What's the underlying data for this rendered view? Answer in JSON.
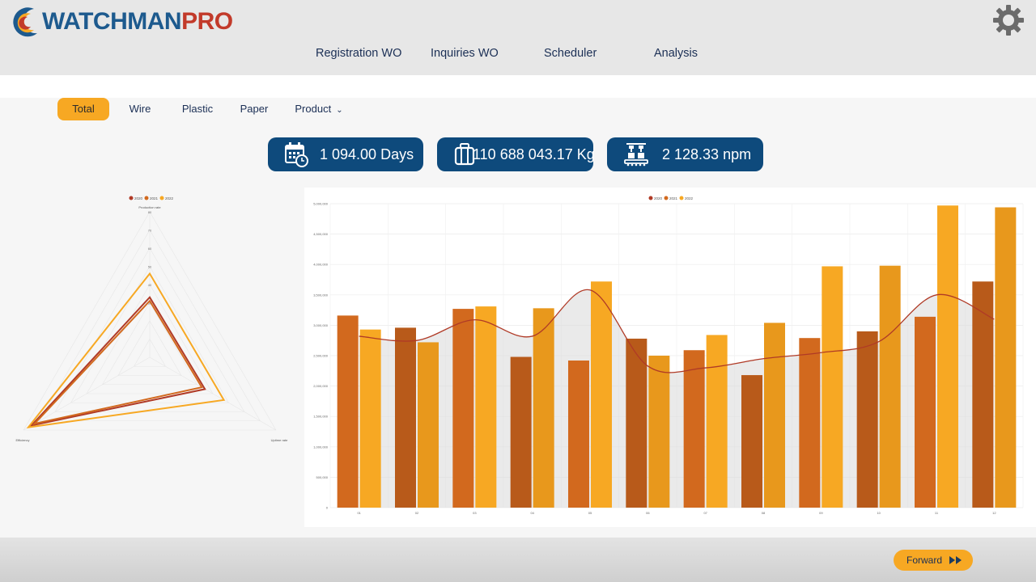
{
  "header": {
    "logo": {
      "part1": "WATCHMAN",
      "part2": "PRO"
    },
    "settings_icon": "gear-icon"
  },
  "nav": {
    "items": [
      {
        "label": "Registration WO"
      },
      {
        "label": "Inquiries WO"
      },
      {
        "label": "Scheduler"
      },
      {
        "label": "Analysis"
      }
    ]
  },
  "filters": {
    "items": [
      {
        "label": "Total",
        "active": true
      },
      {
        "label": "Wire",
        "active": false
      },
      {
        "label": "Plastic",
        "active": false
      },
      {
        "label": "Paper",
        "active": false
      }
    ],
    "product": {
      "label": "Product",
      "icon": "chevron-down-icon"
    }
  },
  "kpis": [
    {
      "icon": "calendar-clock-icon",
      "value": "1 094.00 Days"
    },
    {
      "icon": "luggage-icon",
      "value": "110 688 043.17 Kg"
    },
    {
      "icon": "production-line-icon",
      "value": "2 128.33 npm"
    }
  ],
  "colors": {
    "primary": "#0e4a7c",
    "accent": "#f7a823",
    "series_2020": "#b03a26",
    "series_2021": "#d2691e",
    "series_2022": "#f7a823"
  },
  "chart_data": [
    {
      "type": "radar",
      "legend": [
        "2020",
        "2021",
        "2022"
      ],
      "axes": [
        "Production rate",
        "Uptime rate",
        "Efficiency"
      ],
      "r_ticks": [
        "80",
        "70",
        "60",
        "50",
        "40",
        "30"
      ],
      "r_max": 80,
      "series": [
        {
          "name": "2020",
          "values": [
            33,
            35,
            75
          ]
        },
        {
          "name": "2021",
          "values": [
            31,
            33,
            73
          ]
        },
        {
          "name": "2022",
          "values": [
            46,
            47,
            77
          ]
        }
      ]
    },
    {
      "type": "bar",
      "legend": [
        "2020",
        "2021",
        "2022"
      ],
      "categories": [
        "01",
        "02",
        "03",
        "04",
        "05",
        "06",
        "07",
        "08",
        "09",
        "10",
        "11",
        "12"
      ],
      "ylim": [
        0,
        5000000
      ],
      "yticks": [
        "0",
        "500,000",
        "1,000,000",
        "1,500,000",
        "2,000,000",
        "2,500,000",
        "3,000,000",
        "3,500,000",
        "4,000,000",
        "4,500,000",
        "5,000,000"
      ],
      "series": [
        {
          "name": "2021",
          "values": [
            3160000,
            2960000,
            3270000,
            2480000,
            2420000,
            2780000,
            2590000,
            2180000,
            2790000,
            2900000,
            3140000,
            3720000
          ]
        },
        {
          "name": "2022",
          "values": [
            2930000,
            2720000,
            3310000,
            3280000,
            3720000,
            2500000,
            2840000,
            3040000,
            3970000,
            3980000,
            4970000,
            4940000
          ]
        },
        {
          "name": "2020",
          "type": "line",
          "values": [
            2820000,
            2750000,
            3090000,
            2820000,
            3580000,
            2330000,
            2300000,
            2450000,
            2550000,
            2730000,
            3500000,
            3100000
          ]
        }
      ]
    }
  ],
  "footer": {
    "forward_label": "Forward",
    "forward_icon": "fast-forward-icon"
  }
}
